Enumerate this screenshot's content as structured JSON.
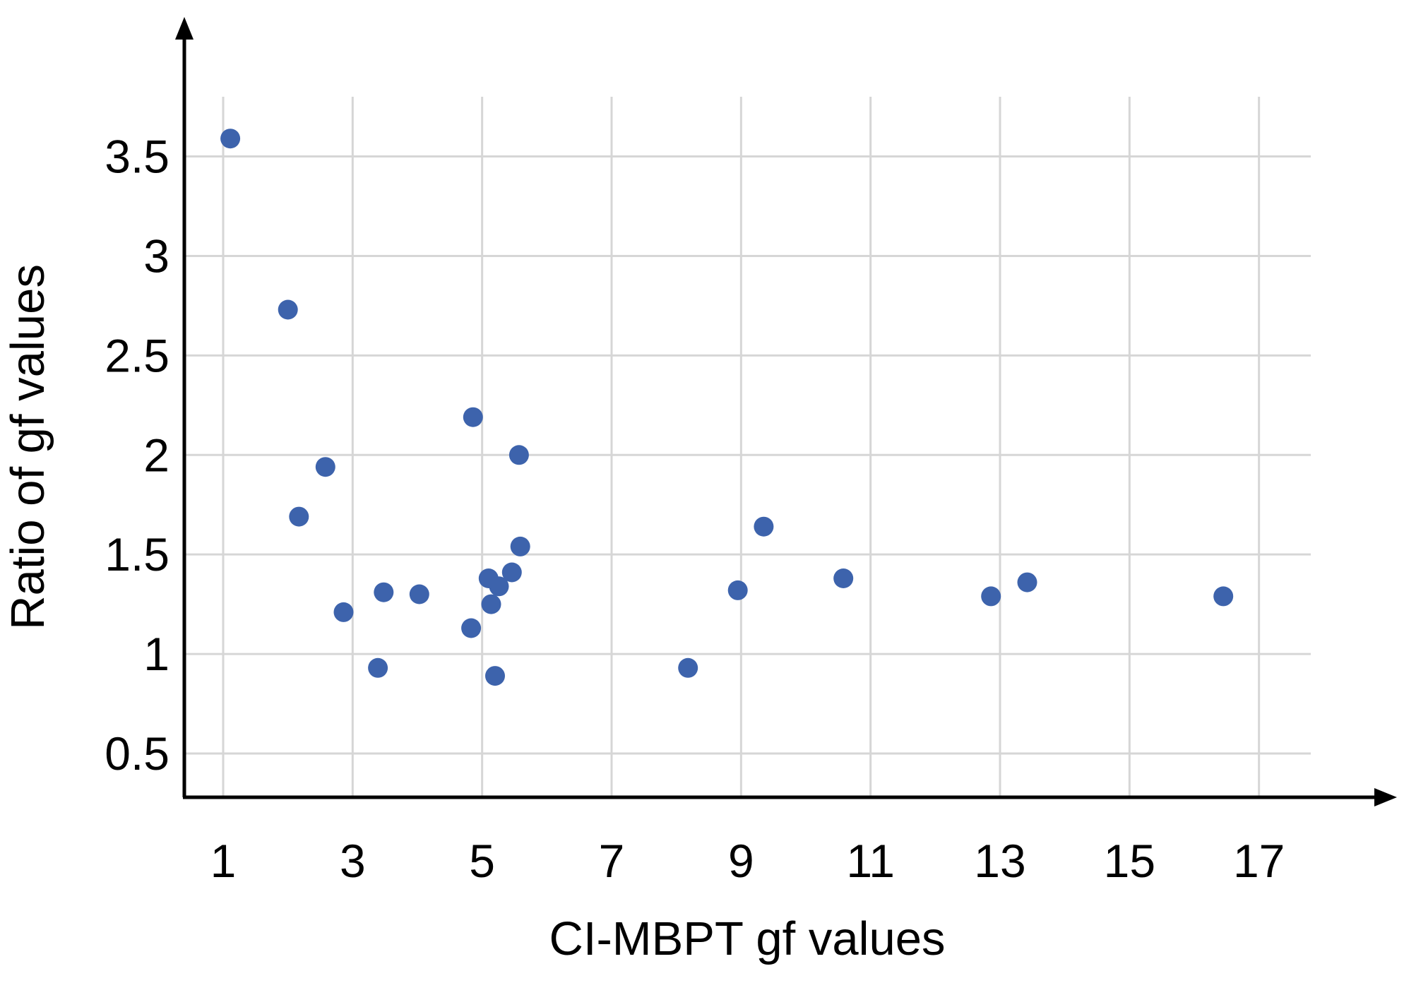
{
  "chart_data": {
    "type": "scatter",
    "title": "",
    "xlabel": "CI-MBPT gf values",
    "ylabel": "Ratio of gf values",
    "x_ticks": [
      1,
      3,
      5,
      7,
      9,
      11,
      13,
      15,
      17
    ],
    "x_tick_labels": [
      "1",
      "3",
      "5",
      "7",
      "9",
      "11",
      "13",
      "15",
      "17"
    ],
    "y_ticks": [
      0.5,
      1,
      1.5,
      2,
      2.5,
      3,
      3.5
    ],
    "y_tick_labels": [
      "0.5",
      "1",
      "1.5",
      "2",
      "2.5",
      "3",
      "3.5"
    ],
    "xlim": [
      0.4,
      17.8
    ],
    "ylim": [
      0.28,
      3.8
    ],
    "grid": true,
    "legend": false,
    "points": [
      [
        1.11,
        3.59
      ],
      [
        2.0,
        2.73
      ],
      [
        2.17,
        1.69
      ],
      [
        2.58,
        1.94
      ],
      [
        2.86,
        1.21
      ],
      [
        3.39,
        0.93
      ],
      [
        3.48,
        1.31
      ],
      [
        4.03,
        1.3
      ],
      [
        4.83,
        1.13
      ],
      [
        4.86,
        2.19
      ],
      [
        5.1,
        1.38
      ],
      [
        5.14,
        1.25
      ],
      [
        5.2,
        0.89
      ],
      [
        5.26,
        1.34
      ],
      [
        5.46,
        1.41
      ],
      [
        5.57,
        2.0
      ],
      [
        5.59,
        1.54
      ],
      [
        8.18,
        0.93
      ],
      [
        8.95,
        1.32
      ],
      [
        9.35,
        1.64
      ],
      [
        10.58,
        1.38
      ],
      [
        12.86,
        1.29
      ],
      [
        13.42,
        1.36
      ],
      [
        16.45,
        1.29
      ]
    ],
    "marker": {
      "shape": "circle",
      "radius_px": 14,
      "color": "#3d63ac"
    }
  },
  "style": {
    "background": "#ffffff",
    "grid_color": "#d6d6d6",
    "axis_color": "#000000",
    "text_color": "#000000"
  }
}
